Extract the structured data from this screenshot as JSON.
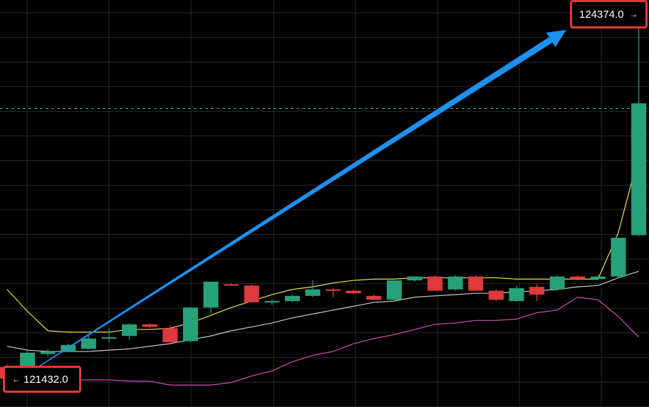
{
  "chart_data": {
    "type": "candlestick",
    "ylim": [
      121250,
      124400
    ],
    "grid": true,
    "candles": [
      {
        "o": 121560,
        "h": 121580,
        "l": 121440,
        "c": 121470
      },
      {
        "o": 121470,
        "h": 121680,
        "l": 121460,
        "c": 121670
      },
      {
        "o": 121660,
        "h": 121700,
        "l": 121645,
        "c": 121680
      },
      {
        "o": 121680,
        "h": 121740,
        "l": 121675,
        "c": 121730
      },
      {
        "o": 121700,
        "h": 121800,
        "l": 121695,
        "c": 121780
      },
      {
        "o": 121780,
        "h": 121860,
        "l": 121750,
        "c": 121790
      },
      {
        "o": 121800,
        "h": 121900,
        "l": 121770,
        "c": 121890
      },
      {
        "o": 121890,
        "h": 121900,
        "l": 121860,
        "c": 121870
      },
      {
        "o": 121860,
        "h": 121880,
        "l": 121750,
        "c": 121750
      },
      {
        "o": 121760,
        "h": 122020,
        "l": 121750,
        "c": 122020
      },
      {
        "o": 122020,
        "h": 122220,
        "l": 121970,
        "c": 122220
      },
      {
        "o": 122200,
        "h": 122210,
        "l": 122190,
        "c": 122190
      },
      {
        "o": 122190,
        "h": 122200,
        "l": 122060,
        "c": 122060
      },
      {
        "o": 122060,
        "h": 122080,
        "l": 122040,
        "c": 122070
      },
      {
        "o": 122070,
        "h": 122120,
        "l": 122060,
        "c": 122110
      },
      {
        "o": 122110,
        "h": 122230,
        "l": 122100,
        "c": 122160
      },
      {
        "o": 122160,
        "h": 122170,
        "l": 122100,
        "c": 122150
      },
      {
        "o": 122150,
        "h": 122160,
        "l": 122120,
        "c": 122130
      },
      {
        "o": 122110,
        "h": 122120,
        "l": 122080,
        "c": 122080
      },
      {
        "o": 122080,
        "h": 122230,
        "l": 122075,
        "c": 122230
      },
      {
        "o": 122230,
        "h": 122260,
        "l": 122220,
        "c": 122260
      },
      {
        "o": 122260,
        "h": 122270,
        "l": 122150,
        "c": 122150
      },
      {
        "o": 122160,
        "h": 122270,
        "l": 122150,
        "c": 122260
      },
      {
        "o": 122260,
        "h": 122270,
        "l": 122150,
        "c": 122150
      },
      {
        "o": 122150,
        "h": 122160,
        "l": 122070,
        "c": 122080
      },
      {
        "o": 122070,
        "h": 122190,
        "l": 122065,
        "c": 122170
      },
      {
        "o": 122180,
        "h": 122200,
        "l": 122070,
        "c": 122120
      },
      {
        "o": 122160,
        "h": 122270,
        "l": 122150,
        "c": 122260
      },
      {
        "o": 122260,
        "h": 122270,
        "l": 122230,
        "c": 122240
      },
      {
        "o": 122240,
        "h": 122270,
        "l": 122230,
        "c": 122260
      },
      {
        "o": 122260,
        "h": 122560,
        "l": 122250,
        "c": 122560
      },
      {
        "o": 122580,
        "h": 124374,
        "l": 122570,
        "c": 123600
      }
    ],
    "bands": {
      "upper": [
        122160,
        121990,
        121840,
        121830,
        121830,
        121830,
        121850,
        121850,
        121860,
        121900,
        121960,
        122020,
        122070,
        122120,
        122160,
        122180,
        122210,
        122230,
        122240,
        122240,
        122250,
        122250,
        122250,
        122250,
        122250,
        122240,
        122240,
        122240,
        122240,
        122240,
        122600,
        123200
      ],
      "middle": [
        121720,
        121690,
        121680,
        121680,
        121680,
        121690,
        121700,
        121720,
        121740,
        121770,
        121800,
        121840,
        121870,
        121900,
        121940,
        121970,
        122000,
        122030,
        122060,
        122070,
        122100,
        122110,
        122120,
        122130,
        122130,
        122140,
        122150,
        122160,
        122180,
        122190,
        122250,
        122300
      ],
      "lower": [
        121480,
        121470,
        121470,
        121460,
        121460,
        121460,
        121450,
        121450,
        121420,
        121420,
        121420,
        121440,
        121490,
        121530,
        121600,
        121650,
        121680,
        121740,
        121780,
        121810,
        121850,
        121890,
        121900,
        121920,
        121920,
        121930,
        121980,
        122000,
        122100,
        122080,
        121950,
        121790
      ]
    },
    "dashed_level": 123560,
    "trend_arrow": {
      "from": 121432.0,
      "to": 124374.0
    },
    "price_labels": {
      "low": "121432.0",
      "high": "124374.0"
    },
    "colors": {
      "up": "#26a17b",
      "down": "#e0383f",
      "upper_band": "#e6e64a",
      "middle_band": "#c8c8c8",
      "lower_band": "#d24fb4",
      "arrow": "#1e90f0",
      "highlight": "#e53935",
      "dashed": "#3aa88c",
      "grid": "#2a2a2a"
    }
  },
  "labels": {
    "low_text": "121432.0",
    "high_text": "124374.0",
    "left_arrow_glyph": "←",
    "right_arrow_glyph": "→"
  }
}
